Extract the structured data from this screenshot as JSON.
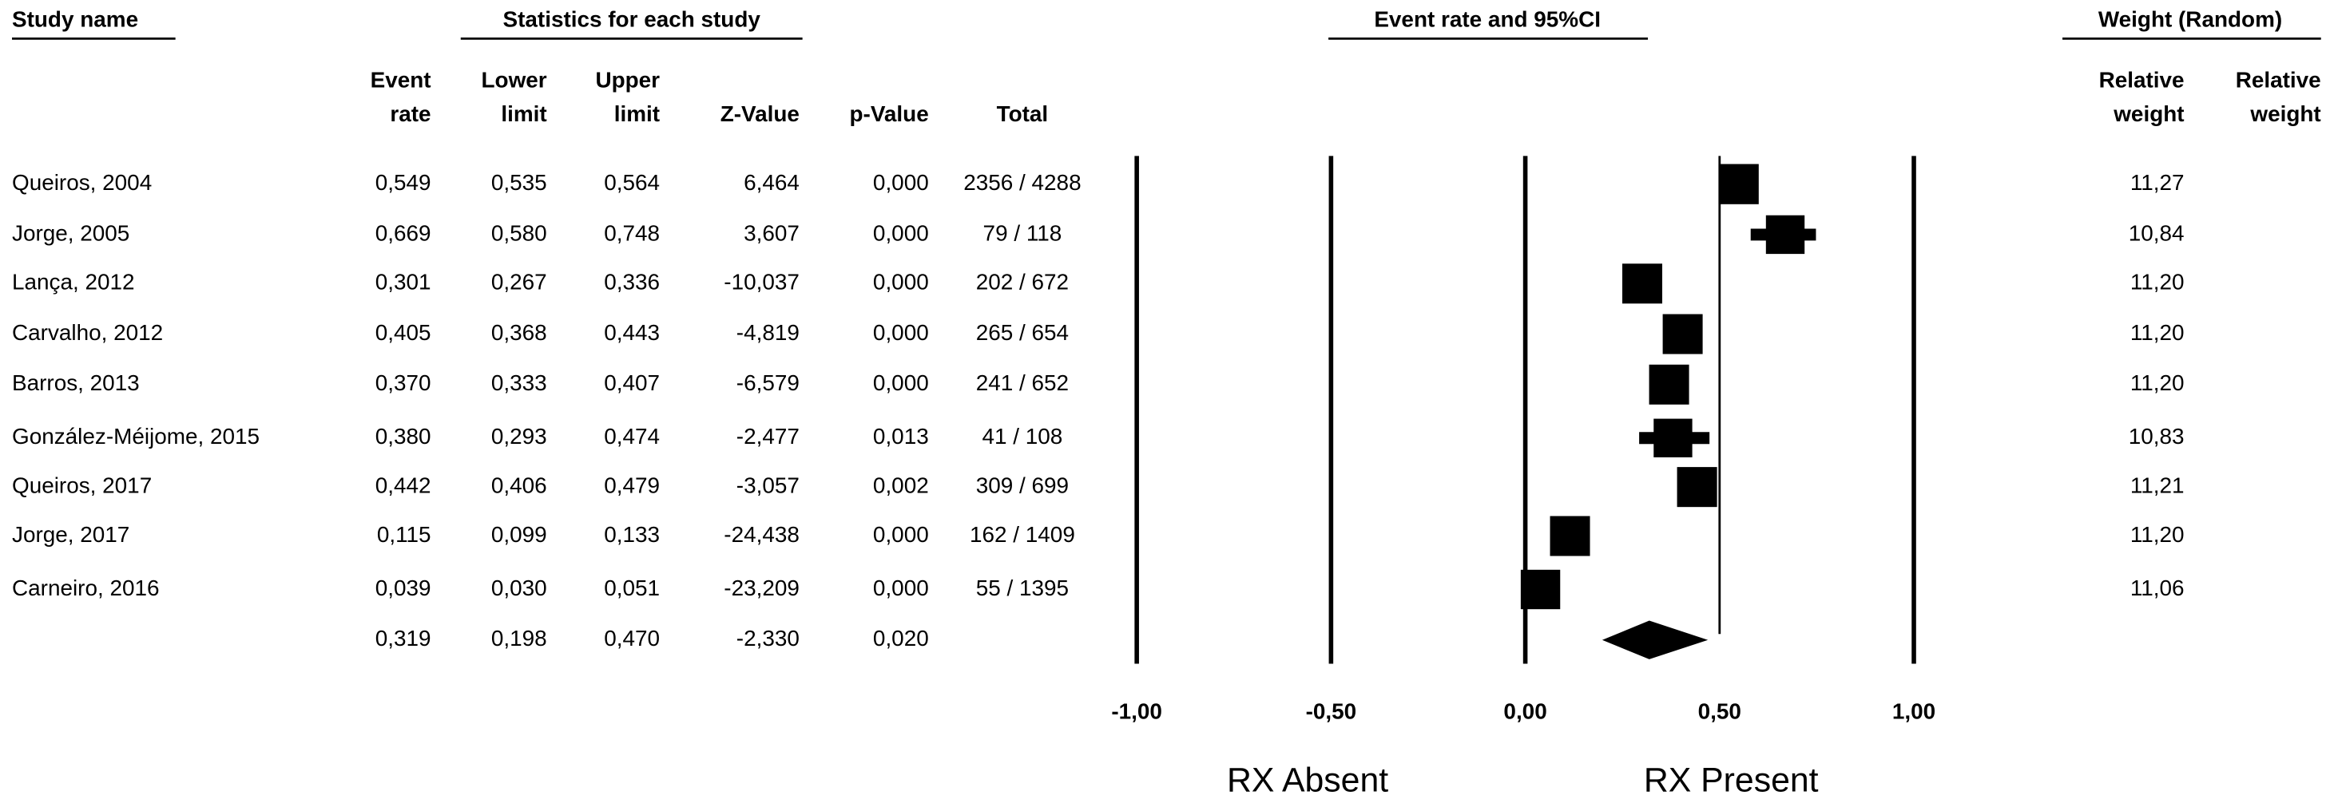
{
  "headers": {
    "study": "Study name",
    "stats": "Statistics for each study",
    "plot": "Event rate and 95%CI",
    "weight": "Weight (Random)"
  },
  "columns": {
    "event_rate": [
      "Event",
      "rate"
    ],
    "lower": [
      "Lower",
      "limit"
    ],
    "upper": [
      "Upper",
      "limit"
    ],
    "z": [
      "Z-Value"
    ],
    "p": [
      "p-Value"
    ],
    "total": [
      "Total"
    ],
    "weight": [
      "Relative",
      "weight"
    ],
    "weight2": [
      "Relative",
      "weight"
    ]
  },
  "rows": [
    {
      "study": "Queiros, 2004",
      "event_rate": {
        "value": 0.549,
        "label": "0,549"
      },
      "lower": {
        "value": 0.535,
        "label": "0,535"
      },
      "upper": {
        "value": 0.564,
        "label": "0,564"
      },
      "z": "6,464",
      "p": "0,000",
      "total": "2356 / 4288",
      "weight": {
        "value": 11.27,
        "label": "11,27"
      }
    },
    {
      "study": "Jorge, 2005",
      "event_rate": {
        "value": 0.669,
        "label": "0,669"
      },
      "lower": {
        "value": 0.58,
        "label": "0,580"
      },
      "upper": {
        "value": 0.748,
        "label": "0,748"
      },
      "z": "3,607",
      "p": "0,000",
      "total": "79 / 118",
      "weight": {
        "value": 10.84,
        "label": "10,84"
      }
    },
    {
      "study": "Lança, 2012",
      "event_rate": {
        "value": 0.301,
        "label": "0,301"
      },
      "lower": {
        "value": 0.267,
        "label": "0,267"
      },
      "upper": {
        "value": 0.336,
        "label": "0,336"
      },
      "z": "-10,037",
      "p": "0,000",
      "total": "202 / 672",
      "weight": {
        "value": 11.2,
        "label": "11,20"
      }
    },
    {
      "study": "Carvalho, 2012",
      "event_rate": {
        "value": 0.405,
        "label": "0,405"
      },
      "lower": {
        "value": 0.368,
        "label": "0,368"
      },
      "upper": {
        "value": 0.443,
        "label": "0,443"
      },
      "z": "-4,819",
      "p": "0,000",
      "total": "265 / 654",
      "weight": {
        "value": 11.2,
        "label": "11,20"
      }
    },
    {
      "study": "Barros, 2013",
      "event_rate": {
        "value": 0.37,
        "label": "0,370"
      },
      "lower": {
        "value": 0.333,
        "label": "0,333"
      },
      "upper": {
        "value": 0.407,
        "label": "0,407"
      },
      "z": "-6,579",
      "p": "0,000",
      "total": "241 / 652",
      "weight": {
        "value": 11.2,
        "label": "11,20"
      }
    },
    {
      "study": "González-Méijome, 2015",
      "event_rate": {
        "value": 0.38,
        "label": "0,380"
      },
      "lower": {
        "value": 0.293,
        "label": "0,293"
      },
      "upper": {
        "value": 0.474,
        "label": "0,474"
      },
      "z": "-2,477",
      "p": "0,013",
      "total": "41 / 108",
      "weight": {
        "value": 10.83,
        "label": "10,83"
      }
    },
    {
      "study": "Queiros, 2017",
      "event_rate": {
        "value": 0.442,
        "label": "0,442"
      },
      "lower": {
        "value": 0.406,
        "label": "0,406"
      },
      "upper": {
        "value": 0.479,
        "label": "0,479"
      },
      "z": "-3,057",
      "p": "0,002",
      "total": "309 / 699",
      "weight": {
        "value": 11.21,
        "label": "11,21"
      }
    },
    {
      "study": "Jorge, 2017",
      "event_rate": {
        "value": 0.115,
        "label": "0,115"
      },
      "lower": {
        "value": 0.099,
        "label": "0,099"
      },
      "upper": {
        "value": 0.133,
        "label": "0,133"
      },
      "z": "-24,438",
      "p": "0,000",
      "total": "162 / 1409",
      "weight": {
        "value": 11.2,
        "label": "11,20"
      }
    },
    {
      "study": "Carneiro, 2016",
      "event_rate": {
        "value": 0.039,
        "label": "0,039"
      },
      "lower": {
        "value": 0.03,
        "label": "0,030"
      },
      "upper": {
        "value": 0.051,
        "label": "0,051"
      },
      "z": "-23,209",
      "p": "0,000",
      "total": "55 / 1395",
      "weight": {
        "value": 11.06,
        "label": "11,06"
      }
    }
  ],
  "summary": {
    "event_rate": {
      "value": 0.319,
      "label": "0,319"
    },
    "lower": {
      "value": 0.198,
      "label": "0,198"
    },
    "upper": {
      "value": 0.47,
      "label": "0,470"
    },
    "z": "-2,330",
    "p": "0,020"
  },
  "plot": {
    "xlim": [
      -1,
      1
    ],
    "xticks": [
      {
        "value": -1,
        "label": "-1,00"
      },
      {
        "value": -0.5,
        "label": "-0,50"
      },
      {
        "value": 0,
        "label": "0,00"
      },
      {
        "value": 0.5,
        "label": "0,50"
      },
      {
        "value": 1,
        "label": "1,00"
      }
    ],
    "left_label": "RX Absent",
    "right_label": "RX Present"
  }
}
